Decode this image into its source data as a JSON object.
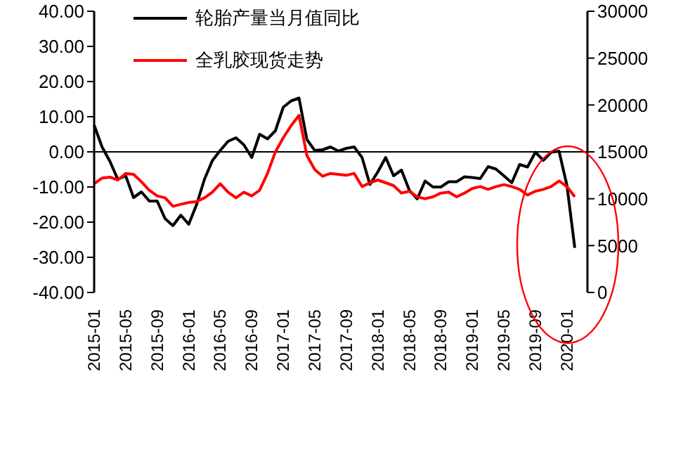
{
  "chart_data": {
    "type": "line",
    "categories": [
      "2015-01",
      null,
      null,
      null,
      "2015-05",
      null,
      null,
      null,
      "2015-09",
      null,
      null,
      null,
      "2016-01",
      null,
      null,
      null,
      "2016-05",
      null,
      null,
      null,
      "2016-09",
      null,
      null,
      null,
      "2017-01",
      null,
      null,
      null,
      "2017-05",
      null,
      null,
      null,
      "2017-09",
      null,
      null,
      null,
      "2018-01",
      null,
      null,
      null,
      "2018-05",
      null,
      null,
      null,
      "2018-09",
      null,
      null,
      null,
      "2019-01",
      null,
      null,
      null,
      "2019-05",
      null,
      null,
      null,
      "2019-09",
      null,
      null,
      null,
      "2020-01",
      null
    ],
    "series": [
      {
        "name": "轮胎产量当月值同比",
        "color": "#000000",
        "values": [
          7.6,
          1.4,
          -2.7,
          -7.8,
          -6.8,
          -13,
          -11.4,
          -14,
          -14,
          -19,
          -21,
          -18,
          -20.6,
          -15,
          -7.8,
          -2.5,
          0.4,
          3,
          4,
          2,
          -1.6,
          5,
          3.7,
          6,
          12.7,
          14.5,
          15.3,
          3.5,
          0.4,
          0.6,
          1.4,
          0.2,
          1,
          1.4,
          -1.6,
          -9.3,
          -5.7,
          -1.6,
          -6.8,
          -5.2,
          -10.9,
          -13.4,
          -8.3,
          -10,
          -10,
          -8.5,
          -8.5,
          -7.1,
          -7.3,
          -7.6,
          -4.2,
          -4.9,
          -6.8,
          -8.8,
          -3.6,
          -4.3,
          -0.1,
          -2.4,
          -0.1,
          0.2,
          -9.5,
          -27.3
        ]
      },
      {
        "name": "全乳胶现货走势",
        "color": "#ff0000",
        "axis": "y2",
        "values": [
          11600,
          12200,
          12300,
          12000,
          12700,
          12600,
          11800,
          10900,
          10300,
          10100,
          9200,
          9400,
          9600,
          9700,
          10100,
          10700,
          11600,
          10700,
          10100,
          10700,
          10300,
          10900,
          12700,
          15000,
          16500,
          17800,
          18900,
          14600,
          13100,
          12400,
          12700,
          12600,
          12500,
          12700,
          11300,
          11700,
          12000,
          11700,
          11400,
          10600,
          10800,
          10200,
          10000,
          10200,
          10600,
          10700,
          10200,
          10600,
          11100,
          11300,
          11000,
          11300,
          11500,
          11300,
          11000,
          10400,
          10800,
          11000,
          11300,
          11900,
          11300,
          10200
        ]
      }
    ],
    "ylim": [
      -40,
      40
    ],
    "yticks": [
      {
        "value": -40,
        "label": "-40.00"
      },
      {
        "value": -30,
        "label": "-30.00"
      },
      {
        "value": -20,
        "label": "-20.00"
      },
      {
        "value": -10,
        "label": "-10.00"
      },
      {
        "value": 0,
        "label": "0.00"
      },
      {
        "value": 10,
        "label": "10.00"
      },
      {
        "value": 20,
        "label": "20.00"
      },
      {
        "value": 30,
        "label": "30.00"
      },
      {
        "value": 40,
        "label": "40.00"
      }
    ],
    "y2lim": [
      0,
      30000
    ],
    "y2ticks": [
      0,
      5000,
      10000,
      15000,
      20000,
      25000,
      30000
    ],
    "ref_lines": [
      {
        "axis": "y",
        "value": 0,
        "color": "#000000"
      }
    ],
    "legend": "top left",
    "marker": "none",
    "line_style": "solid"
  }
}
